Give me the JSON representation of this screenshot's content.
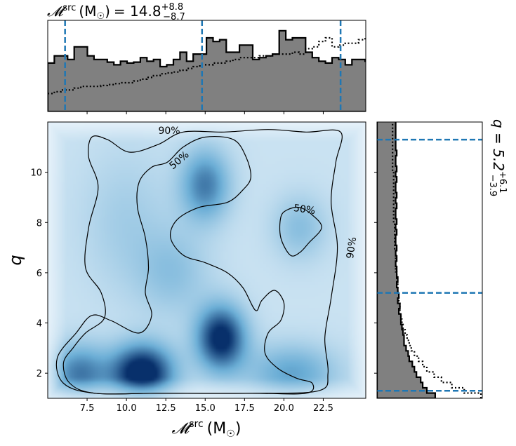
{
  "chart_data": {
    "type": "corner",
    "top_title": {
      "symbol": "𝓜",
      "sup": "src",
      "unit": "(M",
      "sun": "☉",
      "close": ")",
      "eq": "= 14.8",
      "plus": "+8.8",
      "minus": "−8.7"
    },
    "right_title": {
      "text": "q = 5.2",
      "plus": "+6.1",
      "minus": "−3.9"
    },
    "xlabel": {
      "symbol": "𝓜",
      "sup": "src",
      "unit": "(M",
      "sun": "☉",
      "close": ")"
    },
    "ylabel": "q",
    "xlim": [
      5.0,
      25.2
    ],
    "ylim": [
      1.0,
      12.0
    ],
    "xticks": [
      "7.5",
      "10.0",
      "12.5",
      "15.0",
      "17.5",
      "20.0",
      "22.5"
    ],
    "xtick_values": [
      7.5,
      10.0,
      12.5,
      15.0,
      17.5,
      20.0,
      22.5
    ],
    "yticks": [
      "2",
      "4",
      "6",
      "8",
      "10"
    ],
    "ytick_values": [
      2,
      4,
      6,
      8,
      10
    ],
    "contour_labels": [
      "90%",
      "50%",
      "50%",
      "90%"
    ],
    "mchirp_quantiles": [
      6.1,
      14.8,
      23.6
    ],
    "q_quantiles": [
      1.3,
      5.2,
      11.3
    ],
    "mchirp_hist": {
      "bins_start": 5.0,
      "bin_width": 0.42,
      "posterior": [
        0.54,
        0.62,
        0.62,
        0.58,
        0.72,
        0.72,
        0.62,
        0.58,
        0.58,
        0.55,
        0.52,
        0.56,
        0.54,
        0.55,
        0.6,
        0.56,
        0.58,
        0.5,
        0.52,
        0.58,
        0.66,
        0.56,
        0.64,
        0.64,
        0.82,
        0.78,
        0.8,
        0.66,
        0.66,
        0.74,
        0.74,
        0.58,
        0.6,
        0.62,
        0.64,
        0.9,
        0.8,
        0.82,
        0.82,
        0.66,
        0.6,
        0.56,
        0.54,
        0.6,
        0.58,
        0.52,
        0.58,
        0.58,
        0.56,
        0.57,
        0.54,
        0.54,
        0.5,
        0.52,
        0.48,
        0.48
      ],
      "prior": [
        0.2,
        0.22,
        0.24,
        0.24,
        0.26,
        0.28,
        0.28,
        0.28,
        0.29,
        0.3,
        0.31,
        0.32,
        0.32,
        0.34,
        0.36,
        0.38,
        0.4,
        0.42,
        0.43,
        0.44,
        0.46,
        0.48,
        0.5,
        0.52,
        0.52,
        0.54,
        0.54,
        0.56,
        0.58,
        0.6,
        0.6,
        0.6,
        0.62,
        0.62,
        0.64,
        0.64,
        0.64,
        0.66,
        0.64,
        0.7,
        0.72,
        0.78,
        0.82,
        0.72,
        0.74,
        0.76,
        0.76,
        0.8,
        0.82,
        0.88,
        0.9,
        0.86,
        0.88,
        0.85,
        0.88,
        0.94
      ]
    },
    "q_hist": {
      "bins_start": 1.0,
      "bin_width": 0.21,
      "posterior": [
        0.56,
        0.48,
        0.44,
        0.42,
        0.38,
        0.36,
        0.34,
        0.31,
        0.3,
        0.28,
        0.26,
        0.26,
        0.25,
        0.24,
        0.23,
        0.23,
        0.21,
        0.22,
        0.2,
        0.21,
        0.2,
        0.19,
        0.2,
        0.19,
        0.19,
        0.18,
        0.19,
        0.18,
        0.19,
        0.18,
        0.18,
        0.19,
        0.18,
        0.19,
        0.18,
        0.18,
        0.19,
        0.18,
        0.19,
        0.18,
        0.18,
        0.19,
        0.18,
        0.19,
        0.18,
        0.18,
        0.19,
        0.18,
        0.18,
        0.18,
        0.18,
        0.18,
        0.18
      ],
      "prior": [
        1.0,
        0.84,
        0.72,
        0.62,
        0.55,
        0.48,
        0.44,
        0.4,
        0.36,
        0.33,
        0.31,
        0.29,
        0.27,
        0.25,
        0.24,
        0.23,
        0.22,
        0.22,
        0.21,
        0.21,
        0.2,
        0.2,
        0.19,
        0.19,
        0.18,
        0.18,
        0.18,
        0.18,
        0.17,
        0.17,
        0.17,
        0.17,
        0.17,
        0.16,
        0.16,
        0.16,
        0.16,
        0.16,
        0.16,
        0.16,
        0.16,
        0.16,
        0.16,
        0.15,
        0.15,
        0.15,
        0.15,
        0.15,
        0.15,
        0.15,
        0.15,
        0.15,
        0.15
      ]
    },
    "density_peaks": [
      {
        "x": 11.0,
        "y": 2.0,
        "amp": 1.0,
        "sx": 1.4,
        "sy": 0.8
      },
      {
        "x": 16.0,
        "y": 3.4,
        "amp": 0.9,
        "sx": 1.1,
        "sy": 0.9
      },
      {
        "x": 7.0,
        "y": 2.0,
        "amp": 0.55,
        "sx": 1.3,
        "sy": 0.8
      },
      {
        "x": 15.0,
        "y": 9.5,
        "amp": 0.55,
        "sx": 1.1,
        "sy": 1.0
      },
      {
        "x": 20.5,
        "y": 2.0,
        "amp": 0.4,
        "sx": 2.0,
        "sy": 0.8
      },
      {
        "x": 21.0,
        "y": 7.8,
        "amp": 0.25,
        "sx": 1.2,
        "sy": 0.9
      },
      {
        "x": 13.0,
        "y": 6.0,
        "amp": 0.22,
        "sx": 1.6,
        "sy": 1.2
      },
      {
        "x": 10.0,
        "y": 8.0,
        "amp": 0.15,
        "sx": 2.0,
        "sy": 2.0
      }
    ],
    "contour_90": [
      [
        6.4,
        1.6
      ],
      [
        6.0,
        2.4
      ],
      [
        6.6,
        3.0
      ],
      [
        7.4,
        3.6
      ],
      [
        8.6,
        4.2
      ],
      [
        8.4,
        5.2
      ],
      [
        7.4,
        6.2
      ],
      [
        7.6,
        7.8
      ],
      [
        8.2,
        9.4
      ],
      [
        7.6,
        10.6
      ],
      [
        7.8,
        11.4
      ],
      [
        8.8,
        11.3
      ],
      [
        10.2,
        10.8
      ],
      [
        12.0,
        11.1
      ],
      [
        13.6,
        11.6
      ],
      [
        16.2,
        11.6
      ],
      [
        19.0,
        11.7
      ],
      [
        21.4,
        11.6
      ],
      [
        23.6,
        11.6
      ],
      [
        23.3,
        10.4
      ],
      [
        23.0,
        8.8
      ],
      [
        23.4,
        7.0
      ],
      [
        23.0,
        5.0
      ],
      [
        22.6,
        3.4
      ],
      [
        22.8,
        2.0
      ],
      [
        22.2,
        1.3
      ],
      [
        18.0,
        1.2
      ],
      [
        12.0,
        1.2
      ],
      [
        8.0,
        1.2
      ]
    ],
    "contour_50": [
      [
        6.0,
        1.6
      ],
      [
        5.6,
        2.6
      ],
      [
        6.8,
        3.6
      ],
      [
        7.8,
        4.3
      ],
      [
        9.0,
        4.1
      ],
      [
        10.8,
        3.6
      ],
      [
        11.6,
        4.3
      ],
      [
        11.2,
        5.2
      ],
      [
        11.4,
        6.2
      ],
      [
        11.2,
        7.4
      ],
      [
        10.7,
        8.6
      ],
      [
        10.8,
        9.6
      ],
      [
        11.6,
        10.2
      ],
      [
        12.6,
        10.4
      ],
      [
        13.6,
        11.0
      ],
      [
        15.0,
        11.4
      ],
      [
        16.8,
        11.3
      ],
      [
        17.6,
        10.6
      ],
      [
        17.9,
        9.8
      ],
      [
        17.4,
        9.3
      ],
      [
        16.4,
        8.8
      ],
      [
        14.6,
        8.6
      ],
      [
        13.2,
        8.1
      ],
      [
        12.8,
        7.4
      ],
      [
        13.6,
        6.7
      ],
      [
        15.0,
        6.4
      ],
      [
        16.4,
        6.0
      ],
      [
        17.4,
        5.4
      ],
      [
        18.2,
        4.5
      ],
      [
        18.6,
        4.9
      ],
      [
        19.4,
        5.3
      ],
      [
        20.0,
        4.8
      ],
      [
        19.8,
        4.1
      ],
      [
        19.0,
        3.6
      ],
      [
        18.8,
        2.8
      ],
      [
        19.6,
        2.2
      ],
      [
        20.8,
        1.8
      ],
      [
        21.8,
        1.6
      ],
      [
        21.4,
        1.2
      ],
      [
        18.0,
        1.2
      ],
      [
        12.0,
        1.2
      ],
      [
        8.0,
        1.2
      ]
    ],
    "contour_50b": [
      [
        19.8,
        8.2
      ],
      [
        20.2,
        8.5
      ],
      [
        21.0,
        8.6
      ],
      [
        21.8,
        8.3
      ],
      [
        22.4,
        7.8
      ],
      [
        21.6,
        7.2
      ],
      [
        21.0,
        6.8
      ],
      [
        20.4,
        6.7
      ],
      [
        19.8,
        7.4
      ]
    ]
  }
}
